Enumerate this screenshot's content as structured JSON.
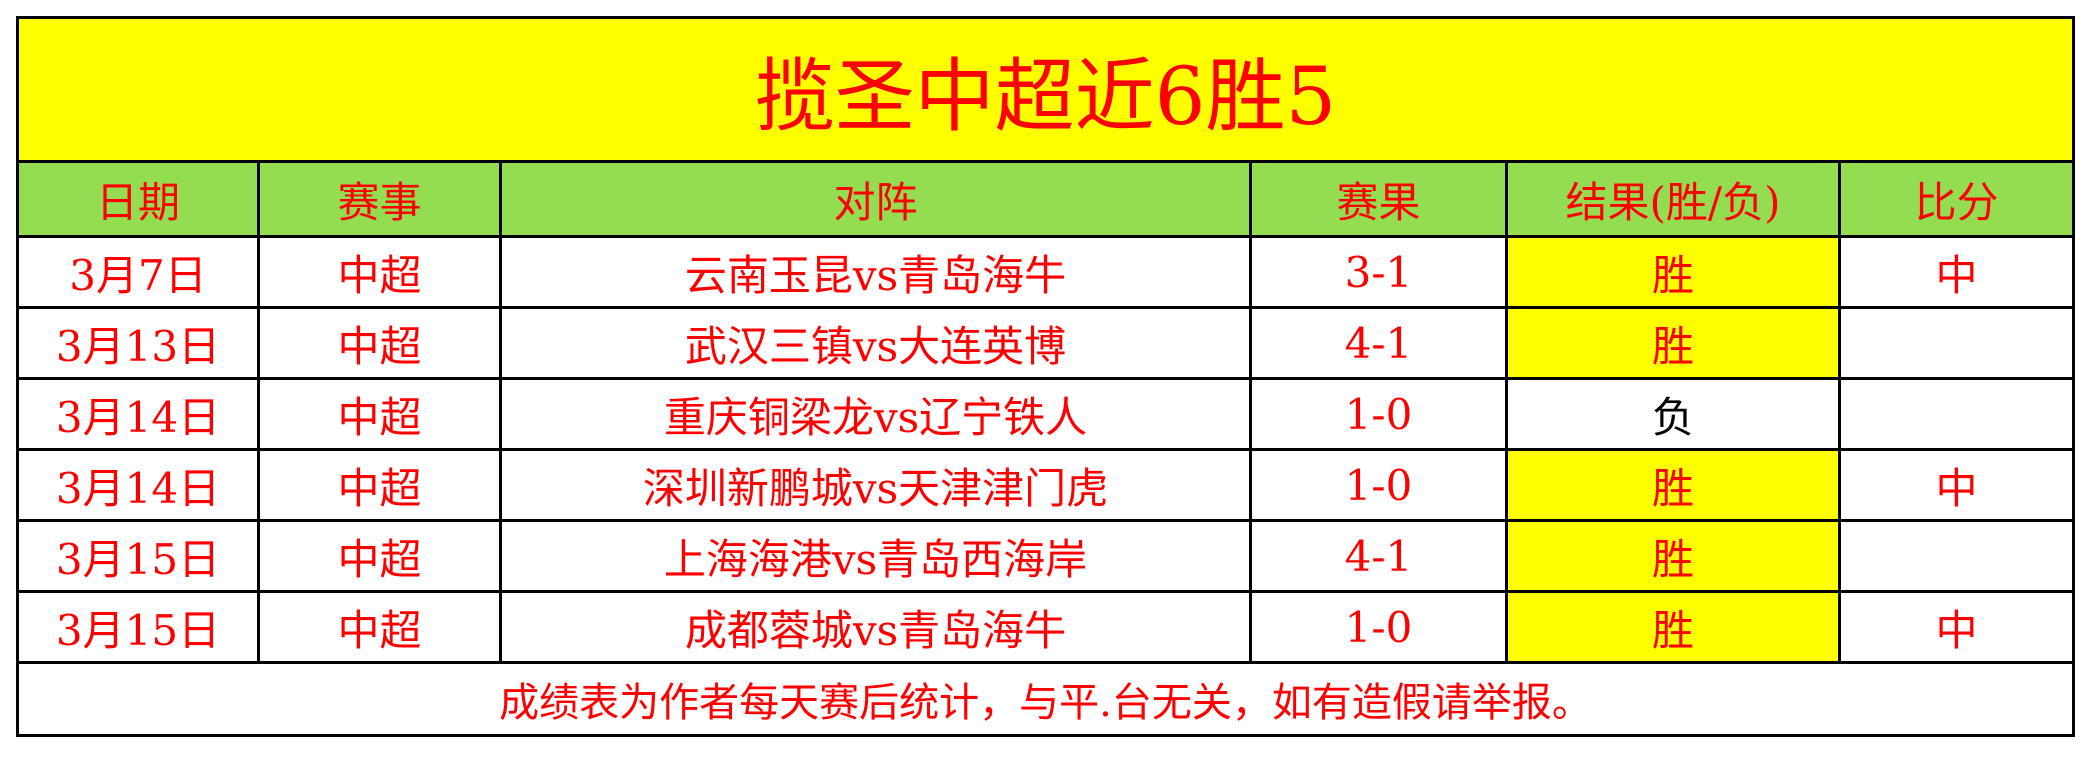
{
  "title": "揽圣中超近6胜5",
  "headers": [
    "日期",
    "赛事",
    "对阵",
    "赛果",
    "结果(胜/负)",
    "比分"
  ],
  "rows": [
    {
      "date": "3月7日",
      "league": "中超",
      "match": "云南玉昆vs青岛海牛",
      "score": "3-1",
      "result": "胜",
      "exact": "中"
    },
    {
      "date": "3月13日",
      "league": "中超",
      "match": "武汉三镇vs大连英博",
      "score": "4-1",
      "result": "胜",
      "exact": ""
    },
    {
      "date": "3月14日",
      "league": "中超",
      "match": "重庆铜梁龙vs辽宁铁人",
      "score": "1-0",
      "result": "负",
      "exact": ""
    },
    {
      "date": "3月14日",
      "league": "中超",
      "match": "深圳新鹏城vs天津津门虎",
      "score": "1-0",
      "result": "胜",
      "exact": "中"
    },
    {
      "date": "3月15日",
      "league": "中超",
      "match": "上海海港vs青岛西海岸",
      "score": "4-1",
      "result": "胜",
      "exact": ""
    },
    {
      "date": "3月15日",
      "league": "中超",
      "match": "成都蓉城vs青岛海牛",
      "score": "1-0",
      "result": "胜",
      "exact": "中"
    }
  ],
  "footer": "成绩表为作者每天赛后统计，与平.台无关，如有造假请举报。",
  "colors": {
    "title_bg": "#ffff00",
    "header_bg": "#95dd50",
    "win_bg": "#ffff00",
    "text": "#ff0000",
    "loss_text": "#000000"
  }
}
